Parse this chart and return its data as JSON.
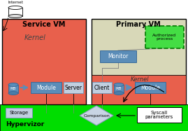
{
  "bg_color": "#ffffff",
  "green_bar_color": "#00dd00",
  "service_vm_color": "#e8604c",
  "primary_vm_top_color": "#d8d8b8",
  "primary_vm_kernel_color": "#e8604c",
  "monitor_color": "#5b8db8",
  "module_color": "#5b8db8",
  "rb_color": "#5b8db8",
  "server_color": "#c0cfe0",
  "client_color": "#c0cfe0",
  "storage_color": "#c0cfe0",
  "syscall_color": "#ffffff",
  "comparison_color": "#c8d4e4",
  "authorized_bg": "#44dd44",
  "hypervizor_text": "Hypervizor",
  "service_vm_text": "Service VM",
  "primary_vm_text": "Primary VM",
  "kernel_text": "Kernel",
  "monitor_text": "Monitor",
  "module_text": "Module",
  "rb_text": "RB",
  "server_text": "Server",
  "client_text": "Client",
  "storage_text": "Storage",
  "comparison_text": "Comparison",
  "syscall_text": "Syscall\nparameters",
  "authorized_text": "Authorized\nprocess",
  "internet_text": "Internet",
  "line_color": "#888888",
  "arrow_color": "#333333"
}
